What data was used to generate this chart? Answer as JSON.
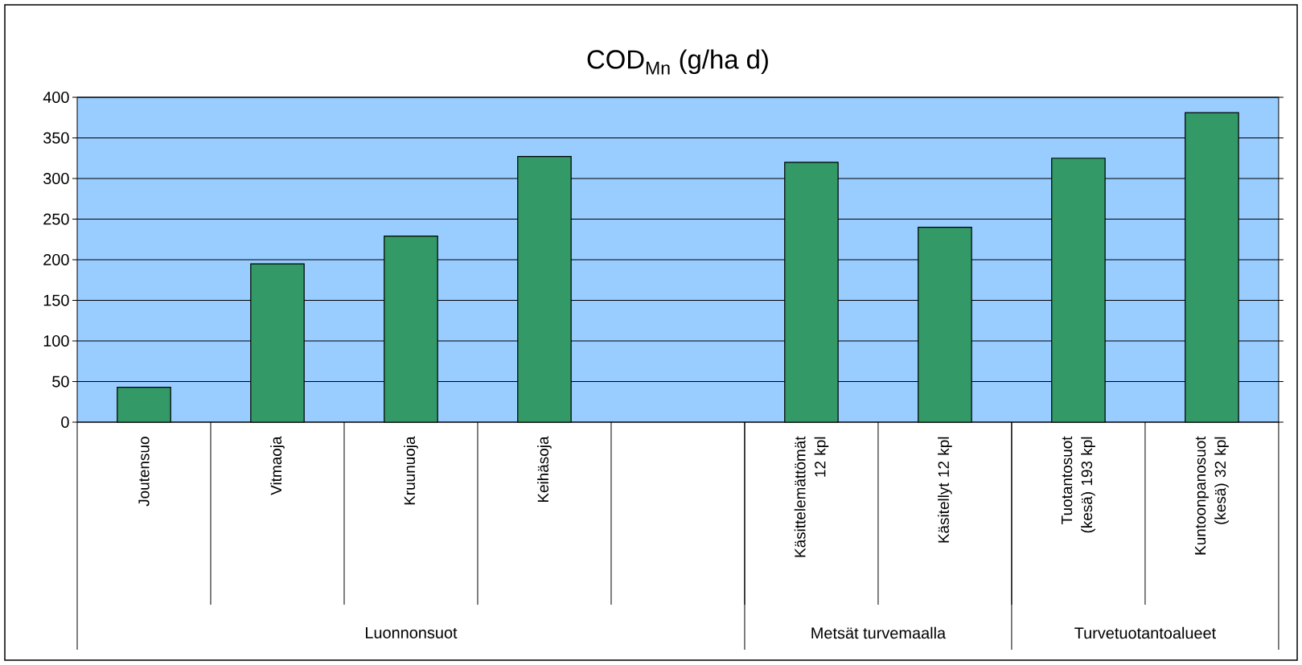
{
  "chart_data": {
    "type": "bar",
    "title": "COD$_{Mn}$  (g/ha d)",
    "categories": [
      "Joutensuo",
      "Vitmaoja",
      "Kruunuoja",
      "Keihäsoja",
      null,
      "Käsittelemättömät 12 kpl",
      "Käsitellyt 12 kpl",
      "Tuotantosuot (kesä) 193 kpl",
      "Kuntoonpanosuot (kesä) 32 kpl"
    ],
    "values": [
      43,
      195,
      229,
      327,
      null,
      320,
      240,
      325,
      381
    ],
    "color": "#339966",
    "ylim": [
      0,
      400
    ],
    "yticks": [
      0,
      50,
      100,
      150,
      200,
      250,
      300,
      350,
      400
    ],
    "grid": "y",
    "annotations": [
      "Luonnonsuot",
      "Metsät turvemaalla",
      "Turvetuotantoalueet"
    ]
  }
}
